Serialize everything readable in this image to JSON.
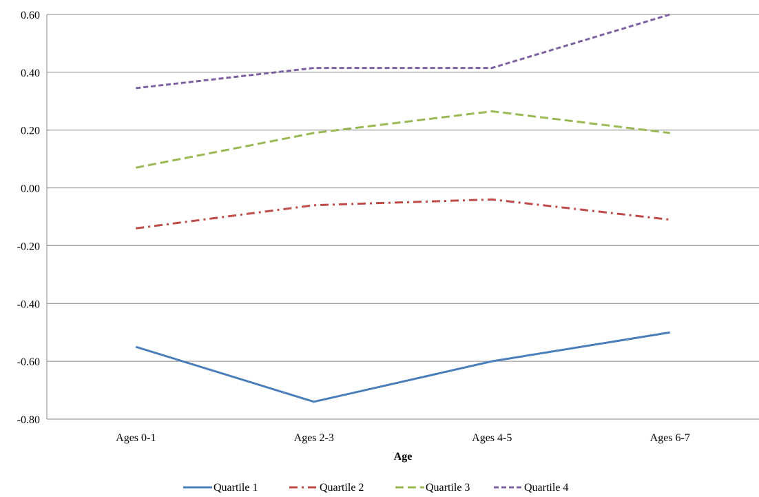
{
  "chart_data": {
    "type": "line",
    "title": "",
    "xlabel": "Age",
    "ylabel": "",
    "categories": [
      "Ages 0-1",
      "Ages 2-3",
      "Ages 4-5",
      "Ages 6-7"
    ],
    "ylim": [
      -0.8,
      0.6
    ],
    "yticks": [
      -0.8,
      -0.6,
      -0.4,
      -0.2,
      0.0,
      0.2,
      0.4,
      0.6
    ],
    "grid": true,
    "legend": "bottom",
    "series": [
      {
        "name": "Quartile 1",
        "values": [
          -0.55,
          -0.74,
          -0.6,
          -0.5
        ],
        "color": "#4a7ebb",
        "dash": "solid"
      },
      {
        "name": "Quartile 2",
        "values": [
          -0.14,
          -0.06,
          -0.04,
          -0.11
        ],
        "color": "#be4b48",
        "dash": "dash-dot"
      },
      {
        "name": "Quartile 3",
        "values": [
          0.07,
          0.19,
          0.265,
          0.19
        ],
        "color": "#98b954",
        "dash": "dash"
      },
      {
        "name": "Quartile 4",
        "values": [
          0.345,
          0.415,
          0.415,
          0.6
        ],
        "color": "#7d60a0",
        "dash": "short-dash"
      }
    ]
  }
}
